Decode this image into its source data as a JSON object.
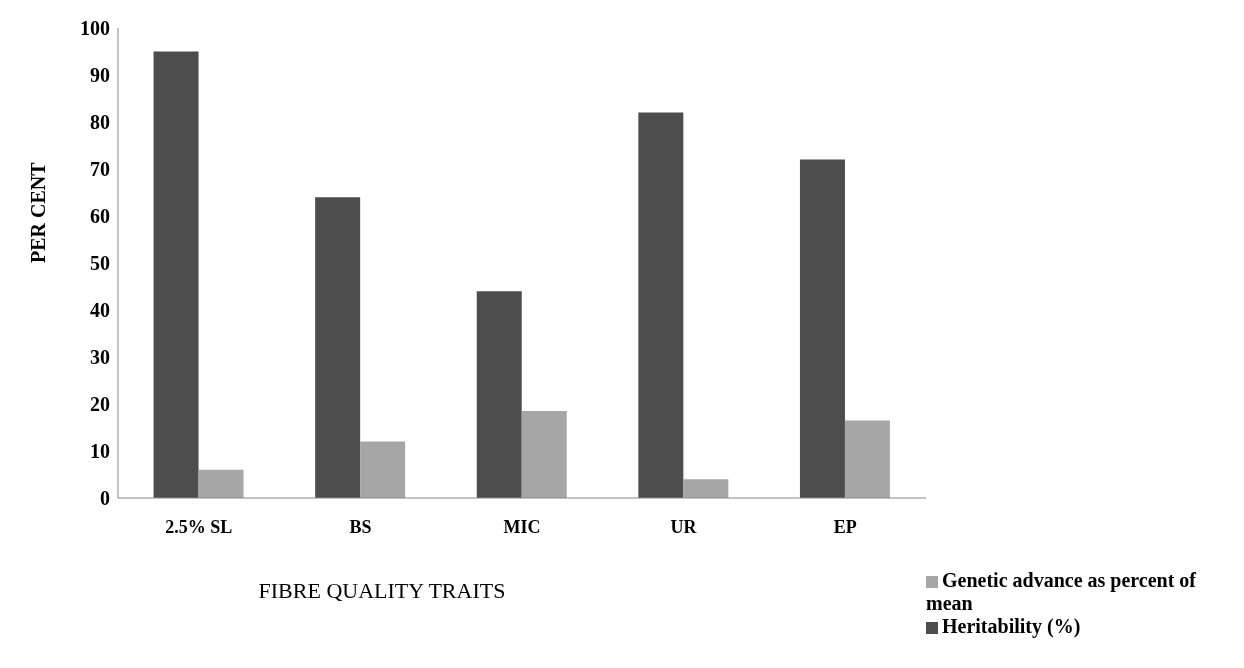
{
  "chart_data": {
    "type": "bar",
    "xlabel": "FIBRE QUALITY TRAITS",
    "ylabel": "PER CENT",
    "categories": [
      "2.5% SL",
      "BS",
      "MIC",
      "UR",
      "EP"
    ],
    "series": [
      {
        "name": "Heritability (%)",
        "color": "#4d4d4d",
        "values": [
          95,
          64,
          44,
          82,
          72
        ]
      },
      {
        "name": "Genetic advance as percent of mean",
        "color": "#a6a6a6",
        "values": [
          6,
          12,
          18.5,
          4,
          16.5
        ]
      }
    ],
    "ylim": [
      0,
      100
    ],
    "yticks": [
      0,
      10,
      20,
      30,
      40,
      50,
      60,
      70,
      80,
      90,
      100
    ],
    "grid": false,
    "legend": "bottom right"
  }
}
